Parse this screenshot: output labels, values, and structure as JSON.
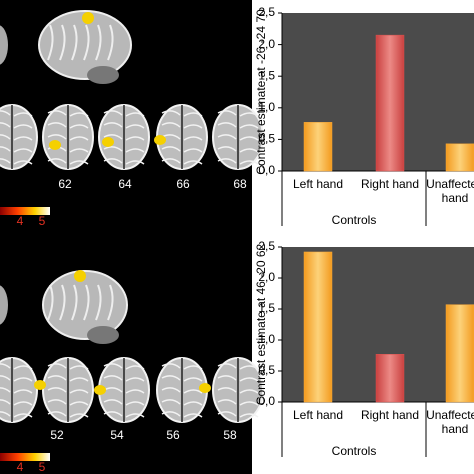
{
  "chart_data": [
    {
      "type": "bar",
      "y_label": "Contrast estimate at -26 -24 70",
      "categories": [
        "Left hand",
        "Right hand",
        "Unaffected hand"
      ],
      "values": [
        0.77,
        2.15,
        0.43
      ],
      "colors": [
        "#f7a93a",
        "#d9534f",
        "#f7a93a"
      ],
      "group_label": "Controls",
      "ylim": [
        0,
        2.5
      ],
      "yticks": [
        {
          "value": 0,
          "label": "0,0"
        },
        {
          "value": 0.5,
          "label": "0,5"
        },
        {
          "value": 1,
          "label": "1,0"
        },
        {
          "value": 1.5,
          "label": "1,5"
        },
        {
          "value": 2,
          "label": "2,0"
        },
        {
          "value": 2.5,
          "label": "2,5"
        }
      ]
    },
    {
      "type": "bar",
      "y_label": "Contrast estimate at 46 -20 62",
      "categories": [
        "Left hand",
        "Right hand",
        "Unaffected hand"
      ],
      "values": [
        2.42,
        0.77,
        1.57
      ],
      "colors": [
        "#f7a93a",
        "#d9534f",
        "#f7a93a"
      ],
      "group_label": "Controls",
      "ylim": [
        0,
        2.5
      ],
      "yticks": [
        {
          "value": 0,
          "label": "0,0"
        },
        {
          "value": 0.5,
          "label": "0,5"
        },
        {
          "value": 1,
          "label": "1,0"
        },
        {
          "value": 1.5,
          "label": "1,5"
        },
        {
          "value": 2,
          "label": "2,0"
        },
        {
          "value": 2.5,
          "label": "2,5"
        }
      ]
    }
  ],
  "brain_panels": [
    {
      "slice_labels": [
        "62",
        "64",
        "66",
        "68"
      ],
      "colorbar_labels": [
        "4",
        "5"
      ]
    },
    {
      "slice_labels": [
        "52",
        "54",
        "56",
        "58"
      ],
      "colorbar_labels": [
        "4",
        "5"
      ]
    }
  ]
}
